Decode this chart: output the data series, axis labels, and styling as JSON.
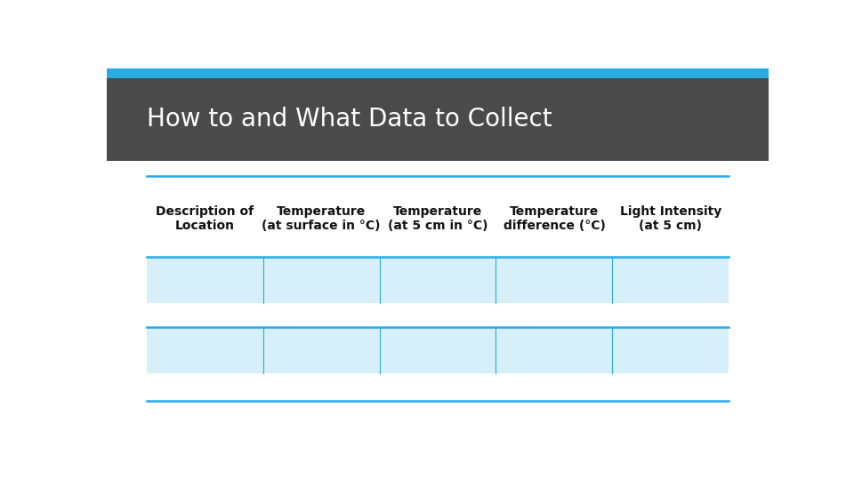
{
  "title": "How to and What Data to Collect",
  "title_color": "#ffffff",
  "title_bg_color": "#4a4a4a",
  "title_stripe_color": "#29abe2",
  "header_row": [
    "Description of\nLocation",
    "Temperature\n(at surface in °C)",
    "Temperature\n(at 5 cm in °C)",
    "Temperature\ndifference (°C)",
    "Light Intensity\n(at 5 cm)"
  ],
  "num_data_rows": 2,
  "row_bg_color": "#d6eff8",
  "line_color": "#29abe2",
  "col_separator_color": "#29abe2",
  "background_color": "#ffffff",
  "num_cols": 5,
  "header_font_size": 10,
  "title_font_size": 20
}
